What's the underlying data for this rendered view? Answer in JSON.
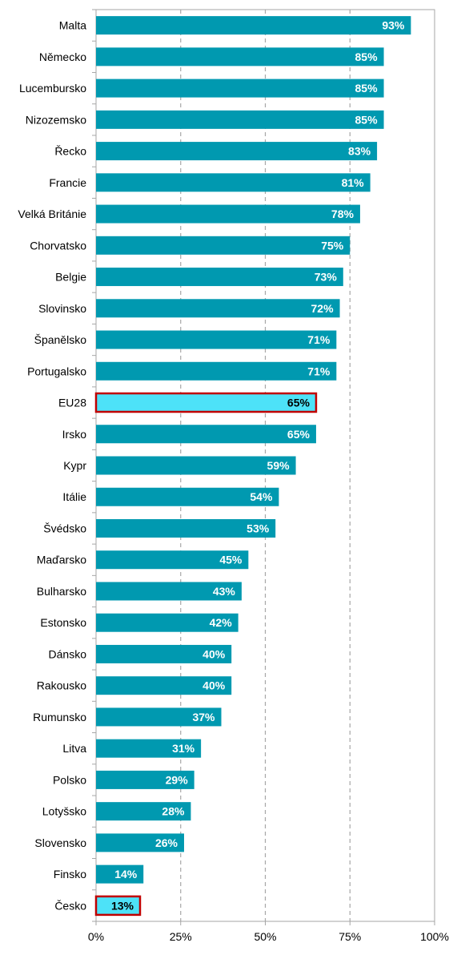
{
  "chart_data": {
    "type": "bar",
    "orientation": "horizontal",
    "categories": [
      "Malta",
      "Německo",
      "Lucembursko",
      "Nizozemsko",
      "Řecko",
      "Francie",
      "Velká Británie",
      "Chorvatsko",
      "Belgie",
      "Slovinsko",
      "Španělsko",
      "Portugalsko",
      "EU28",
      "Irsko",
      "Kypr",
      "Itálie",
      "Švédsko",
      "Maďarsko",
      "Bulharsko",
      "Estonsko",
      "Dánsko",
      "Rakousko",
      "Rumunsko",
      "Litva",
      "Polsko",
      "Lotyšsko",
      "Slovensko",
      "Finsko",
      "Česko"
    ],
    "values": [
      93,
      85,
      85,
      85,
      83,
      81,
      78,
      75,
      73,
      72,
      71,
      71,
      65,
      65,
      59,
      54,
      53,
      45,
      43,
      42,
      40,
      40,
      37,
      31,
      29,
      28,
      26,
      14,
      13
    ],
    "value_labels": [
      "93%",
      "85%",
      "85%",
      "85%",
      "83%",
      "81%",
      "78%",
      "75%",
      "73%",
      "72%",
      "71%",
      "71%",
      "65%",
      "65%",
      "59%",
      "54%",
      "53%",
      "45%",
      "43%",
      "42%",
      "40%",
      "40%",
      "37%",
      "31%",
      "29%",
      "28%",
      "26%",
      "14%",
      "13%"
    ],
    "highlighted": [
      "EU28",
      "Česko"
    ],
    "xlim": [
      0,
      100
    ],
    "x_ticks": [
      "0%",
      "25%",
      "50%",
      "75%",
      "100%"
    ],
    "title": "",
    "xlabel": "",
    "ylabel": "",
    "grid": "vertical dashed",
    "colors": {
      "bar": "#0099B0",
      "highlight_bar": "#4DE2F8",
      "highlight_border": "#C00000",
      "label_default": "#ffffff",
      "label_highlight": "#000000",
      "grid": "#a6a6a6",
      "frame": "#a6a6a6"
    }
  }
}
